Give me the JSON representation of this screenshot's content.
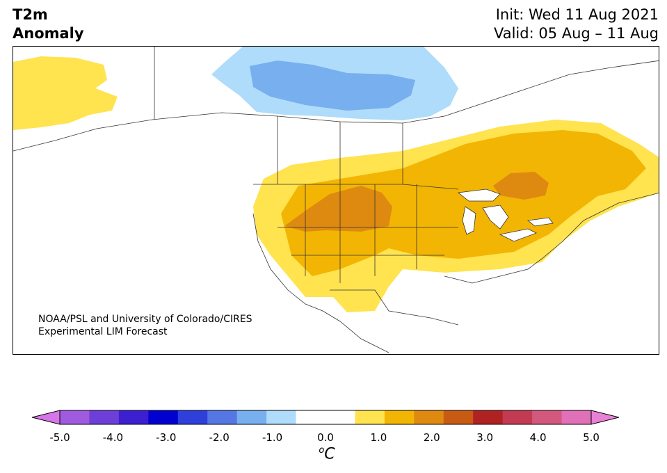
{
  "title": {
    "left_line1": "T2m",
    "left_line2": "Anomaly",
    "right_line1": "Init: Wed 11 Aug 2021",
    "right_line2": "Valid: 05 Aug – 11 Aug"
  },
  "credit": {
    "line1": "NOAA/PSL and University of Colorado/CIRES",
    "line2": "Experimental LIM Forecast"
  },
  "colorbar": {
    "unit_symbol": "o",
    "unit_letter": "C",
    "ticks": [
      "-5.0",
      "-4.0",
      "-3.0",
      "-2.0",
      "-1.0",
      "0.0",
      "1.0",
      "2.0",
      "3.0",
      "4.0",
      "5.0"
    ],
    "colors": [
      "#d675e8",
      "#a05ae0",
      "#6e3fd8",
      "#3c1fd0",
      "#0000d0",
      "#2e3fdc",
      "#5577e4",
      "#78afee",
      "#aedcfa",
      "#ffffff",
      "#ffffff",
      "#ffe34f",
      "#f2b503",
      "#de8a10",
      "#c85b14",
      "#b02222",
      "#c23b52",
      "#d4577e",
      "#e070b8",
      "#e880d6"
    ]
  },
  "map": {
    "region": "North America",
    "anomaly_colors": {
      "cold_strong": "#78afee",
      "cold_weak": "#aedcfa",
      "warm_weak": "#ffe34f",
      "warm_mid": "#f2b503",
      "warm_strong": "#de8a10"
    }
  }
}
